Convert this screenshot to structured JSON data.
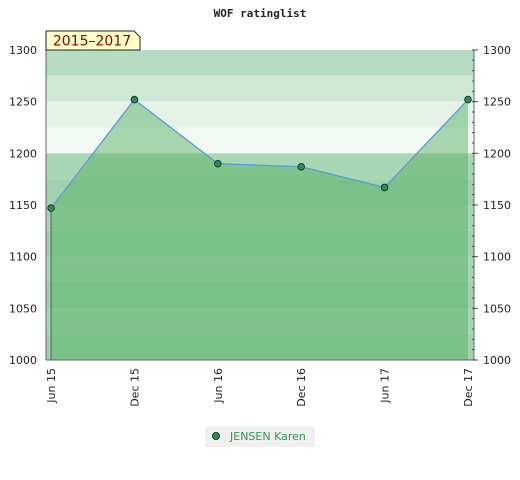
{
  "chart_data": {
    "type": "area",
    "title": "WOF ratinglist",
    "period_label": "2015–2017",
    "categories": [
      "Jun 15",
      "Dec 15",
      "Jun 16",
      "Dec 16",
      "Jun 17",
      "Dec 17"
    ],
    "series": [
      {
        "name": "JENSEN Karen",
        "values": [
          1147,
          1252,
          1190,
          1187,
          1167,
          1252
        ]
      }
    ],
    "ylim": [
      1000,
      1300
    ],
    "yticks": [
      1000,
      1050,
      1100,
      1150,
      1200,
      1250,
      1300
    ],
    "y_axis_both_sides": true,
    "legend_placement": "bottom-center",
    "colors": {
      "area_fill": "#4eaa5e",
      "line": "#5b9bd5",
      "marker_fill": "#2e8b57",
      "legend_text": "#2e9a4a",
      "period_box": "#ffffcc",
      "period_text": "#8b0000"
    }
  }
}
